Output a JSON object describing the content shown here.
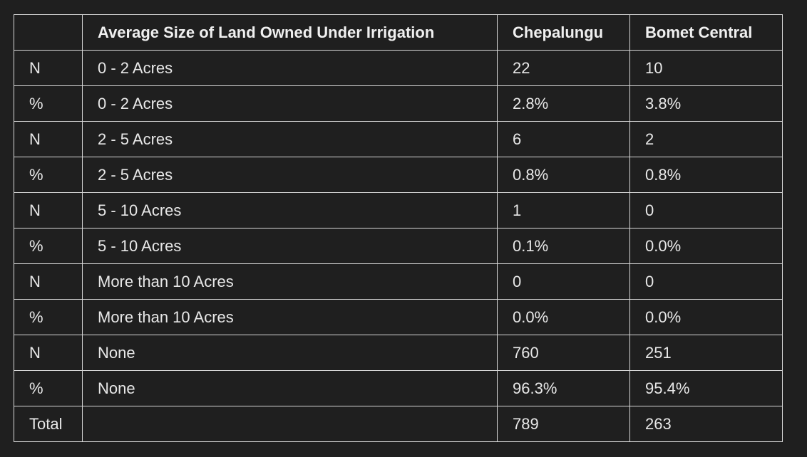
{
  "table": {
    "headers": [
      "",
      "Average Size of Land Owned Under Irrigation",
      "Chepalungu",
      "Bomet Central"
    ],
    "rows": [
      [
        "N",
        "0 - 2 Acres",
        "22",
        "10"
      ],
      [
        "%",
        "0 - 2 Acres",
        "2.8%",
        "3.8%"
      ],
      [
        "N",
        "2 - 5 Acres",
        "6",
        "2"
      ],
      [
        "%",
        "2 - 5 Acres",
        "0.8%",
        "0.8%"
      ],
      [
        "N",
        "5 - 10 Acres",
        "1",
        "0"
      ],
      [
        "%",
        "5 - 10 Acres",
        "0.1%",
        "0.0%"
      ],
      [
        "N",
        "More than 10 Acres",
        "0",
        "0"
      ],
      [
        "%",
        "More than 10 Acres",
        "0.0%",
        "0.0%"
      ],
      [
        "N",
        "None",
        "760",
        "251"
      ],
      [
        "%",
        "None",
        "96.3%",
        "95.4%"
      ],
      [
        "Total",
        "",
        "789",
        "263"
      ]
    ]
  }
}
